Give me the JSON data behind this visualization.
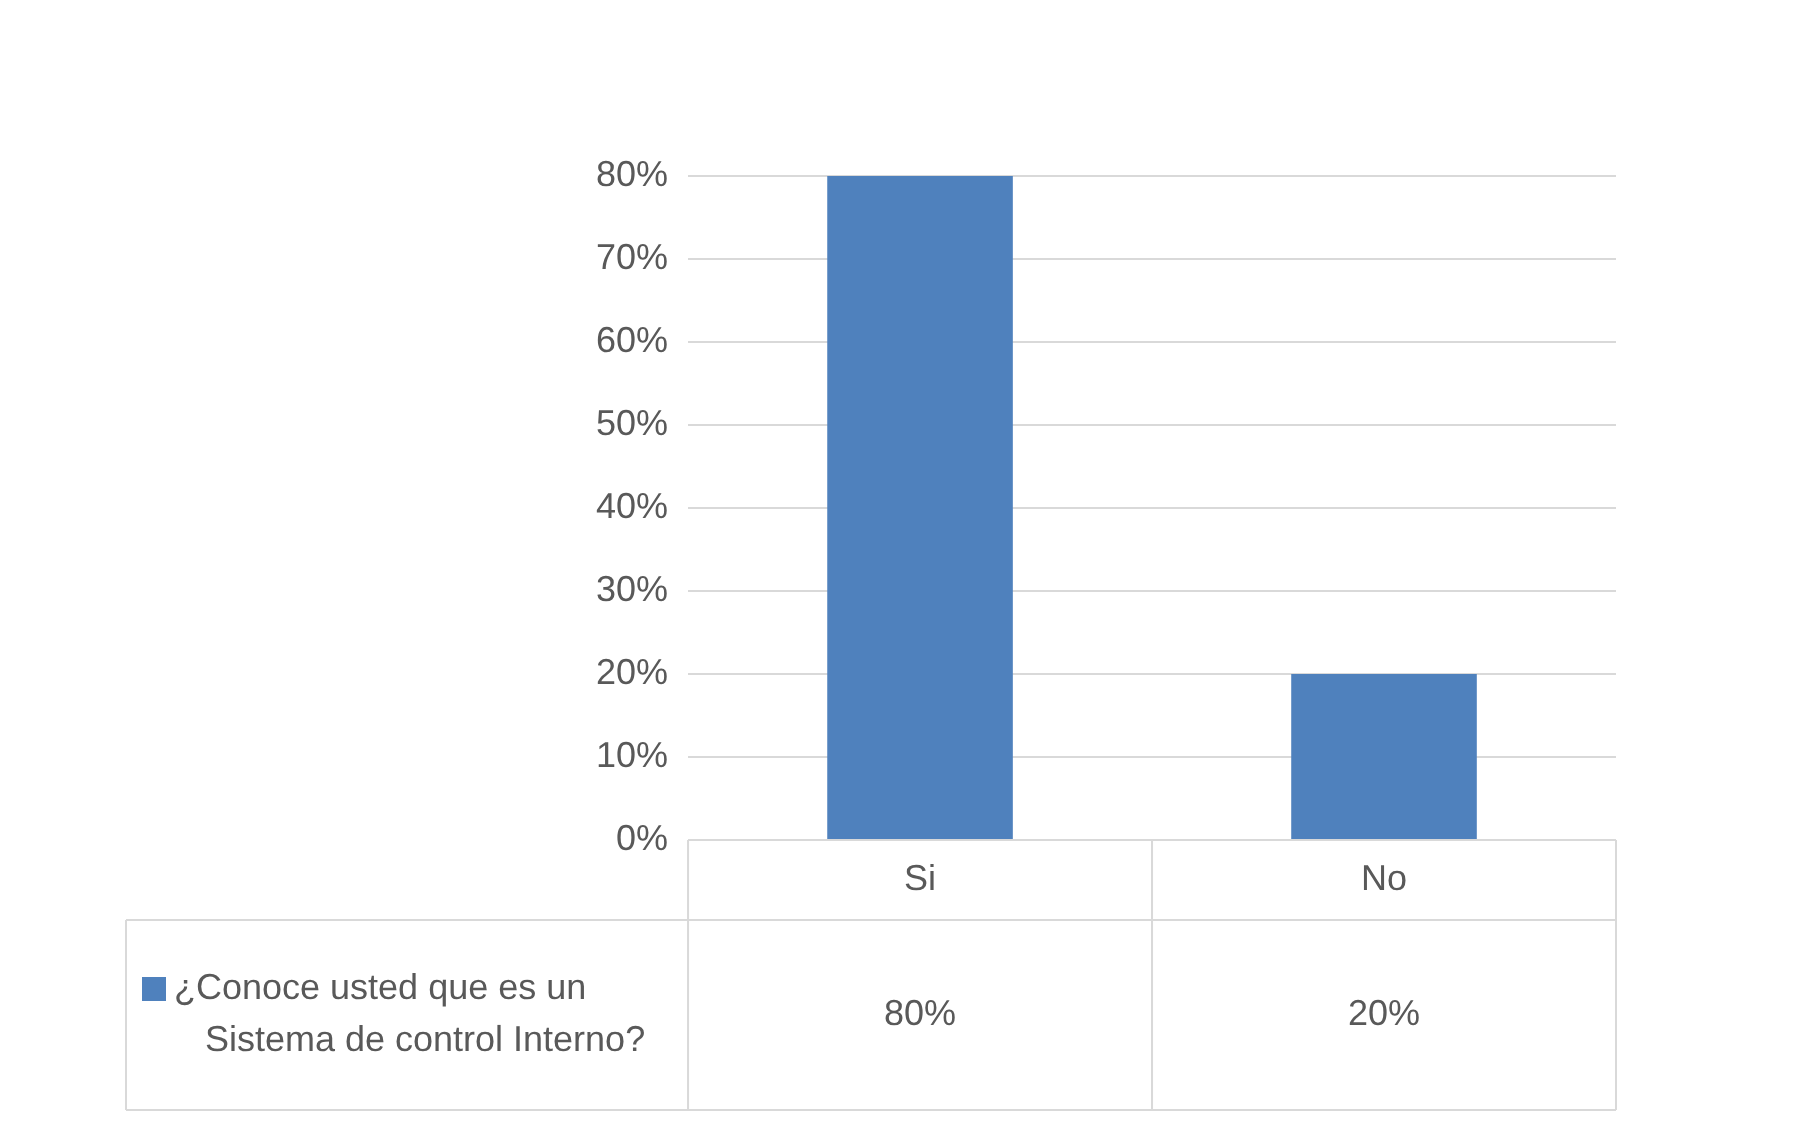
{
  "chart_data": {
    "type": "bar",
    "categories": [
      "Si",
      "No"
    ],
    "series": [
      {
        "name": "¿Conoce usted que es un Sistema de control Interno?",
        "color": "#4f81bd",
        "values": [
          80,
          20
        ],
        "value_labels": [
          "80%",
          "20%"
        ]
      }
    ],
    "ylim": [
      0,
      80
    ],
    "yticks": [
      {
        "value": 0,
        "label": "0%"
      },
      {
        "value": 10,
        "label": "10%"
      },
      {
        "value": 20,
        "label": "20%"
      },
      {
        "value": 30,
        "label": "30%"
      },
      {
        "value": 40,
        "label": "40%"
      },
      {
        "value": 50,
        "label": "50%"
      },
      {
        "value": 60,
        "label": "60%"
      },
      {
        "value": 70,
        "label": "70%"
      },
      {
        "value": 80,
        "label": "80%"
      }
    ],
    "grid": "y",
    "legend": "bottom left"
  }
}
